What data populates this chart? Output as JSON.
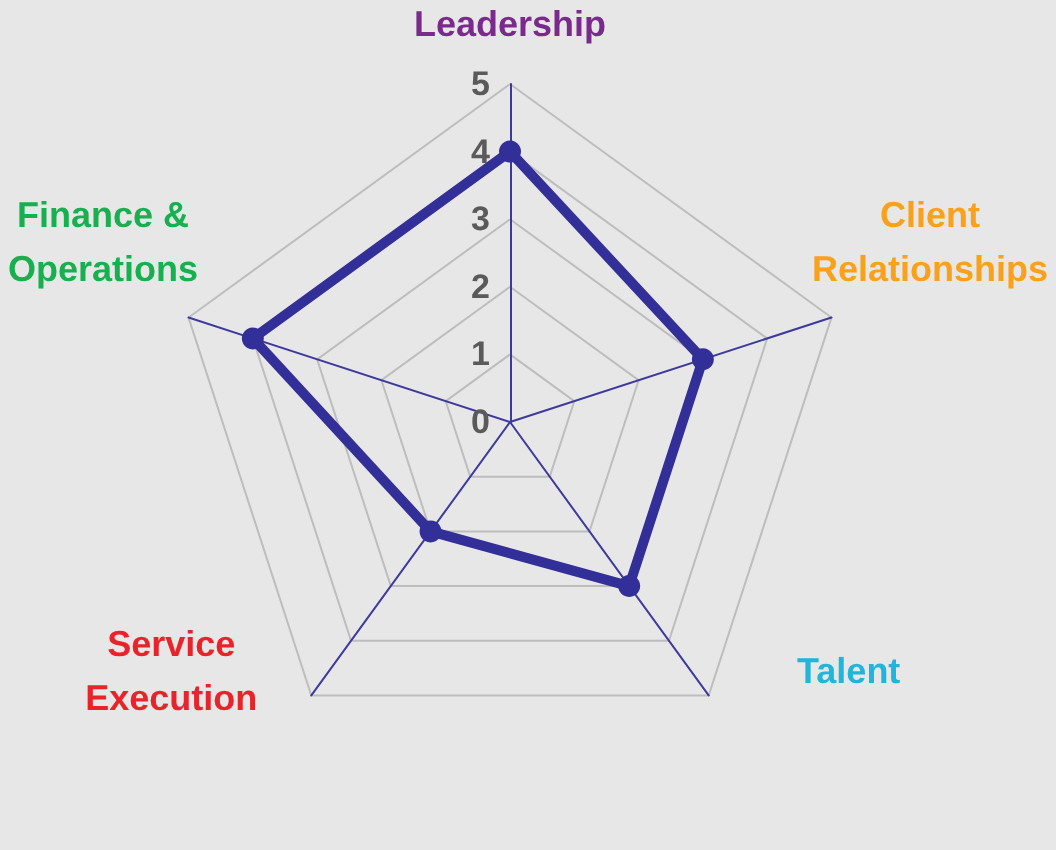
{
  "chart_data": {
    "type": "radar",
    "categories": [
      "Leadership",
      "Client\nRelationships",
      "Talent",
      "Service\nExecution",
      "Finance &\nOperations"
    ],
    "colors": [
      "#7a2a8c",
      "#f9a11b",
      "#1fb5dc",
      "#e8242a",
      "#17b04f"
    ],
    "series": [
      {
        "color": "#332f99",
        "values": [
          4,
          3,
          3,
          2,
          4
        ]
      }
    ],
    "ylim": [
      0,
      5
    ],
    "yticks": [
      0,
      1,
      2,
      3,
      4,
      5
    ],
    "grid": true,
    "marker": "circle",
    "line_style": "solid"
  }
}
